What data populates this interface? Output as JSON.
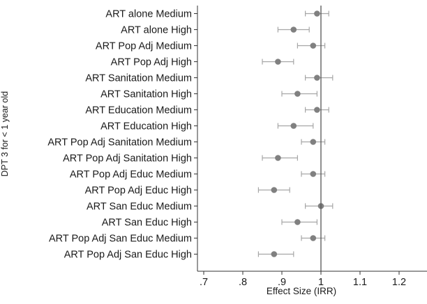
{
  "chart_data": {
    "type": "scatter",
    "subtype": "coefficient-plot",
    "xlabel": "Effect Size (IRR)",
    "ylabel": "DPT 3 for < 1 year old",
    "xlim": [
      0.66,
      1.27
    ],
    "x_ticks": [
      0.7,
      0.8,
      0.9,
      1.0,
      1.1,
      1.2
    ],
    "x_tick_labels": [
      ".7",
      ".8",
      ".9",
      "1",
      "1.1",
      "1.2"
    ],
    "reference_line": 1,
    "grid": false,
    "colors": {
      "marker": "#808080",
      "whisker": "#a6a6a6",
      "reference_line": "#555555",
      "axis": "#333333"
    },
    "categories": [
      "ART alone Medium",
      "ART alone High",
      "ART Pop Adj Medium",
      "ART Pop Adj High",
      "ART Sanitation Medium",
      "ART Sanitation High",
      "ART Education Medium",
      "ART Education High",
      "ART Pop Adj Sanitation Medium",
      "ART Pop Adj Sanitation High",
      "ART Pop Adj Educ Medium",
      "ART Pop Adj Educ High",
      "ART San Educ Medium",
      "ART San Educ High",
      "ART Pop Adj San Educ Medium",
      "ART Pop Adj San Educ High"
    ],
    "estimates": [
      0.99,
      0.93,
      0.98,
      0.89,
      0.99,
      0.94,
      0.99,
      0.93,
      0.98,
      0.89,
      0.98,
      0.88,
      1.0,
      0.94,
      0.98,
      0.88
    ],
    "ci_low": [
      0.96,
      0.89,
      0.94,
      0.85,
      0.96,
      0.9,
      0.96,
      0.89,
      0.95,
      0.85,
      0.95,
      0.84,
      0.96,
      0.9,
      0.95,
      0.84
    ],
    "ci_high": [
      1.02,
      0.97,
      1.01,
      0.93,
      1.03,
      0.99,
      1.02,
      0.98,
      1.01,
      0.94,
      1.01,
      0.92,
      1.03,
      0.99,
      1.01,
      0.93
    ]
  }
}
